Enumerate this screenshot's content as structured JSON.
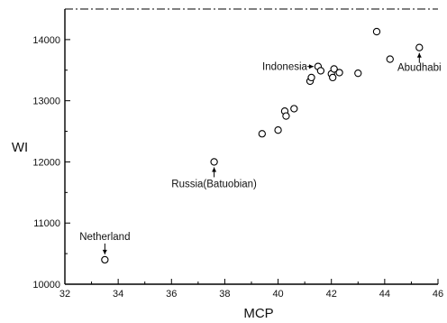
{
  "chart_data": {
    "type": "scatter",
    "xlabel": "MCP",
    "ylabel": "WI",
    "xlim": [
      32,
      46
    ],
    "ylim": [
      10000,
      14500
    ],
    "xticks": [
      32,
      34,
      36,
      38,
      40,
      42,
      44,
      46
    ],
    "yticks": [
      10000,
      11000,
      12000,
      13000,
      14000
    ],
    "grid": false,
    "points": [
      {
        "x": 33.5,
        "y": 10400
      },
      {
        "x": 37.6,
        "y": 12000
      },
      {
        "x": 39.4,
        "y": 12460
      },
      {
        "x": 40.0,
        "y": 12520
      },
      {
        "x": 40.25,
        "y": 12830
      },
      {
        "x": 40.3,
        "y": 12750
      },
      {
        "x": 40.6,
        "y": 12870
      },
      {
        "x": 41.2,
        "y": 13320
      },
      {
        "x": 41.25,
        "y": 13380
      },
      {
        "x": 41.5,
        "y": 13560
      },
      {
        "x": 41.6,
        "y": 13490
      },
      {
        "x": 42.0,
        "y": 13440
      },
      {
        "x": 42.05,
        "y": 13380
      },
      {
        "x": 42.1,
        "y": 13520
      },
      {
        "x": 42.3,
        "y": 13460
      },
      {
        "x": 43.0,
        "y": 13450
      },
      {
        "x": 43.7,
        "y": 14130
      },
      {
        "x": 44.2,
        "y": 13680
      },
      {
        "x": 45.3,
        "y": 13870
      }
    ],
    "annotations": [
      {
        "text": "Netherland",
        "x": 33.5,
        "y": 10400,
        "arrow": "down"
      },
      {
        "text": "Russia(Batuobian)",
        "x": 37.6,
        "y": 12000,
        "arrow": "up"
      },
      {
        "text": "Indonesia",
        "x": 41.5,
        "y": 13560,
        "arrow": "right"
      },
      {
        "text": "Abudhabi",
        "x": 45.3,
        "y": 13870,
        "arrow": "up"
      }
    ]
  }
}
